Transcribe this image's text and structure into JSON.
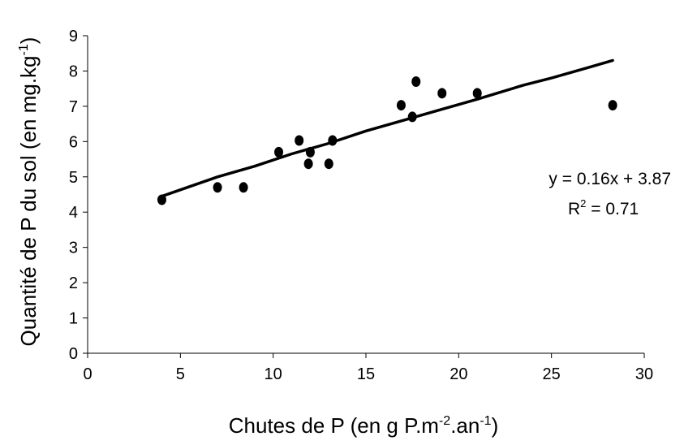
{
  "chart_data": {
    "type": "scatter",
    "xlabel": {
      "base": "Chutes de P (en g P.m",
      "sup1": "-2",
      "mid": ".an",
      "sup2": "-1",
      "end": ")"
    },
    "ylabel": {
      "base": "Quantité de P du sol (en mg.kg",
      "sup1": "-1",
      "end": ")"
    },
    "xlim": [
      0,
      30
    ],
    "ylim": [
      0,
      9
    ],
    "xticks": [
      0,
      5,
      10,
      15,
      20,
      25,
      30
    ],
    "yticks": [
      0,
      1,
      2,
      3,
      4,
      5,
      6,
      7,
      8,
      9
    ],
    "grid": false,
    "points": [
      {
        "x": 4.0,
        "y": 4.35
      },
      {
        "x": 7.0,
        "y": 4.7
      },
      {
        "x": 8.4,
        "y": 4.7
      },
      {
        "x": 10.3,
        "y": 5.7
      },
      {
        "x": 11.4,
        "y": 6.03
      },
      {
        "x": 11.9,
        "y": 5.37
      },
      {
        "x": 12.0,
        "y": 5.7
      },
      {
        "x": 13.0,
        "y": 5.37
      },
      {
        "x": 13.2,
        "y": 6.03
      },
      {
        "x": 16.9,
        "y": 7.03
      },
      {
        "x": 17.5,
        "y": 6.7
      },
      {
        "x": 17.7,
        "y": 7.7
      },
      {
        "x": 19.1,
        "y": 7.37
      },
      {
        "x": 21.0,
        "y": 7.37
      },
      {
        "x": 28.3,
        "y": 7.03
      }
    ],
    "trendline": [
      {
        "x": 4.0,
        "y": 4.45
      },
      {
        "x": 7.0,
        "y": 5.0
      },
      {
        "x": 9.0,
        "y": 5.3
      },
      {
        "x": 11.0,
        "y": 5.65
      },
      {
        "x": 13.0,
        "y": 5.95
      },
      {
        "x": 15.0,
        "y": 6.3
      },
      {
        "x": 17.0,
        "y": 6.6
      },
      {
        "x": 19.0,
        "y": 6.9
      },
      {
        "x": 21.0,
        "y": 7.2
      },
      {
        "x": 23.5,
        "y": 7.6
      },
      {
        "x": 25.0,
        "y": 7.8
      },
      {
        "x": 27.0,
        "y": 8.1
      },
      {
        "x": 28.3,
        "y": 8.3
      }
    ],
    "equation": "y = 0.16x + 3.87",
    "r2": {
      "base": "R",
      "sup": "2",
      "value": " = 0.71"
    },
    "colors": {
      "marker": "#000000",
      "line": "#000000",
      "axis": "#000000"
    }
  }
}
